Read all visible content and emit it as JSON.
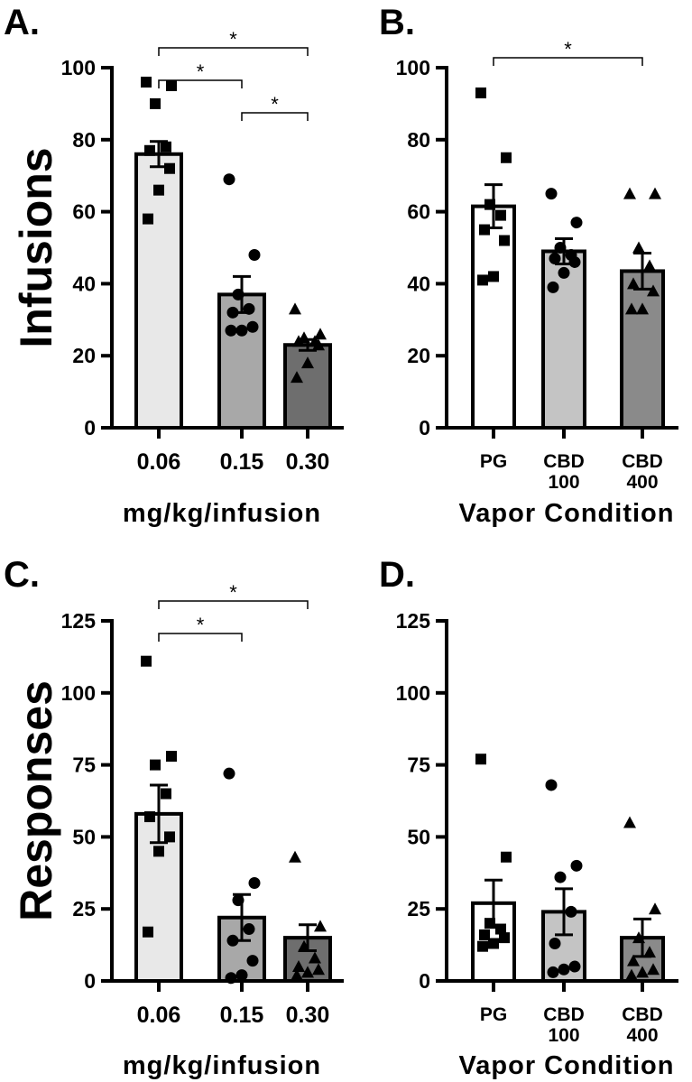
{
  "chart_data": [
    {
      "panel": "A.",
      "type": "bar",
      "ylabel": "Infusions",
      "xlabel": "mg/kg/infusion",
      "ylim": [
        0,
        100
      ],
      "yticks": [
        "0",
        "20",
        "40",
        "60",
        "80",
        "100"
      ],
      "categories": [
        "0.06",
        "0.15",
        "0.30"
      ],
      "values": [
        76,
        37,
        23
      ],
      "errors": [
        3.5,
        5,
        1.5
      ],
      "fills": [
        "#e8e8e8",
        "#a8a8a8",
        "#6e6e6e"
      ],
      "markers": [
        "square",
        "circle",
        "triangle"
      ],
      "points": [
        [
          96,
          95,
          90,
          78,
          77,
          72,
          66,
          58
        ],
        [
          69,
          48,
          37,
          33,
          32,
          28,
          27,
          27
        ],
        [
          33,
          26,
          25,
          24,
          24,
          23,
          18,
          14
        ]
      ],
      "significance": [
        {
          "from": 0,
          "to": 2,
          "label": "*",
          "level": 0
        },
        {
          "from": 0,
          "to": 1,
          "label": "*",
          "level": 1
        },
        {
          "from": 1,
          "to": 2,
          "label": "*",
          "level": 2
        }
      ]
    },
    {
      "panel": "B.",
      "type": "bar",
      "ylabel": "",
      "xlabel": "Vapor Condition",
      "ylim": [
        0,
        100
      ],
      "yticks": [
        "0",
        "20",
        "40",
        "60",
        "80",
        "100"
      ],
      "categories": [
        [
          "PG"
        ],
        [
          "CBD",
          "100"
        ],
        [
          "CBD",
          "400"
        ]
      ],
      "values": [
        61.5,
        49,
        43.5
      ],
      "errors": [
        6,
        3.5,
        5
      ],
      "fills": [
        "#ffffff",
        "#c4c4c4",
        "#8a8a8a"
      ],
      "markers": [
        "square",
        "circle",
        "triangle"
      ],
      "points": [
        [
          93,
          75,
          62,
          59,
          55,
          52,
          42,
          41
        ],
        [
          65,
          57,
          50,
          48,
          47,
          46,
          43,
          39
        ],
        [
          65,
          65,
          50,
          45,
          40,
          38,
          33,
          33
        ]
      ],
      "significance": [
        {
          "from": 0,
          "to": 2,
          "label": "*",
          "level": 0
        }
      ]
    },
    {
      "panel": "C.",
      "type": "bar",
      "ylabel": "Responses",
      "xlabel": "mg/kg/infusion",
      "ylim": [
        0,
        125
      ],
      "yticks": [
        "0",
        "25",
        "50",
        "75",
        "100",
        "125"
      ],
      "categories": [
        "0.06",
        "0.15",
        "0.30"
      ],
      "values": [
        58,
        22,
        15
      ],
      "errors": [
        10,
        8,
        4.5
      ],
      "fills": [
        "#e8e8e8",
        "#a8a8a8",
        "#6e6e6e"
      ],
      "markers": [
        "square",
        "circle",
        "triangle"
      ],
      "points": [
        [
          111,
          78,
          75,
          65,
          57,
          50,
          45,
          17
        ],
        [
          72,
          34,
          28,
          18,
          14,
          7,
          2,
          1
        ],
        [
          43,
          19,
          12,
          8,
          5,
          4,
          3,
          2
        ]
      ],
      "significance": [
        {
          "from": 0,
          "to": 2,
          "label": "*",
          "level": 0
        },
        {
          "from": 0,
          "to": 1,
          "label": "*",
          "level": 1
        }
      ]
    },
    {
      "panel": "D.",
      "type": "bar",
      "ylabel": "",
      "xlabel": "Vapor Condition",
      "ylim": [
        0,
        125
      ],
      "yticks": [
        "0",
        "25",
        "50",
        "75",
        "100",
        "125"
      ],
      "categories": [
        [
          "PG"
        ],
        [
          "CBD",
          "100"
        ],
        [
          "CBD",
          "400"
        ]
      ],
      "values": [
        27,
        24,
        15
      ],
      "errors": [
        8,
        8,
        6.5
      ],
      "fills": [
        "#ffffff",
        "#c4c4c4",
        "#8a8a8a"
      ],
      "markers": [
        "square",
        "circle",
        "triangle"
      ],
      "points": [
        [
          77,
          43,
          20,
          18,
          16,
          15,
          13,
          12
        ],
        [
          68,
          40,
          36,
          24,
          13,
          5,
          4,
          3
        ],
        [
          55,
          25,
          15,
          10,
          7,
          4,
          3,
          2
        ]
      ],
      "significance": []
    }
  ]
}
